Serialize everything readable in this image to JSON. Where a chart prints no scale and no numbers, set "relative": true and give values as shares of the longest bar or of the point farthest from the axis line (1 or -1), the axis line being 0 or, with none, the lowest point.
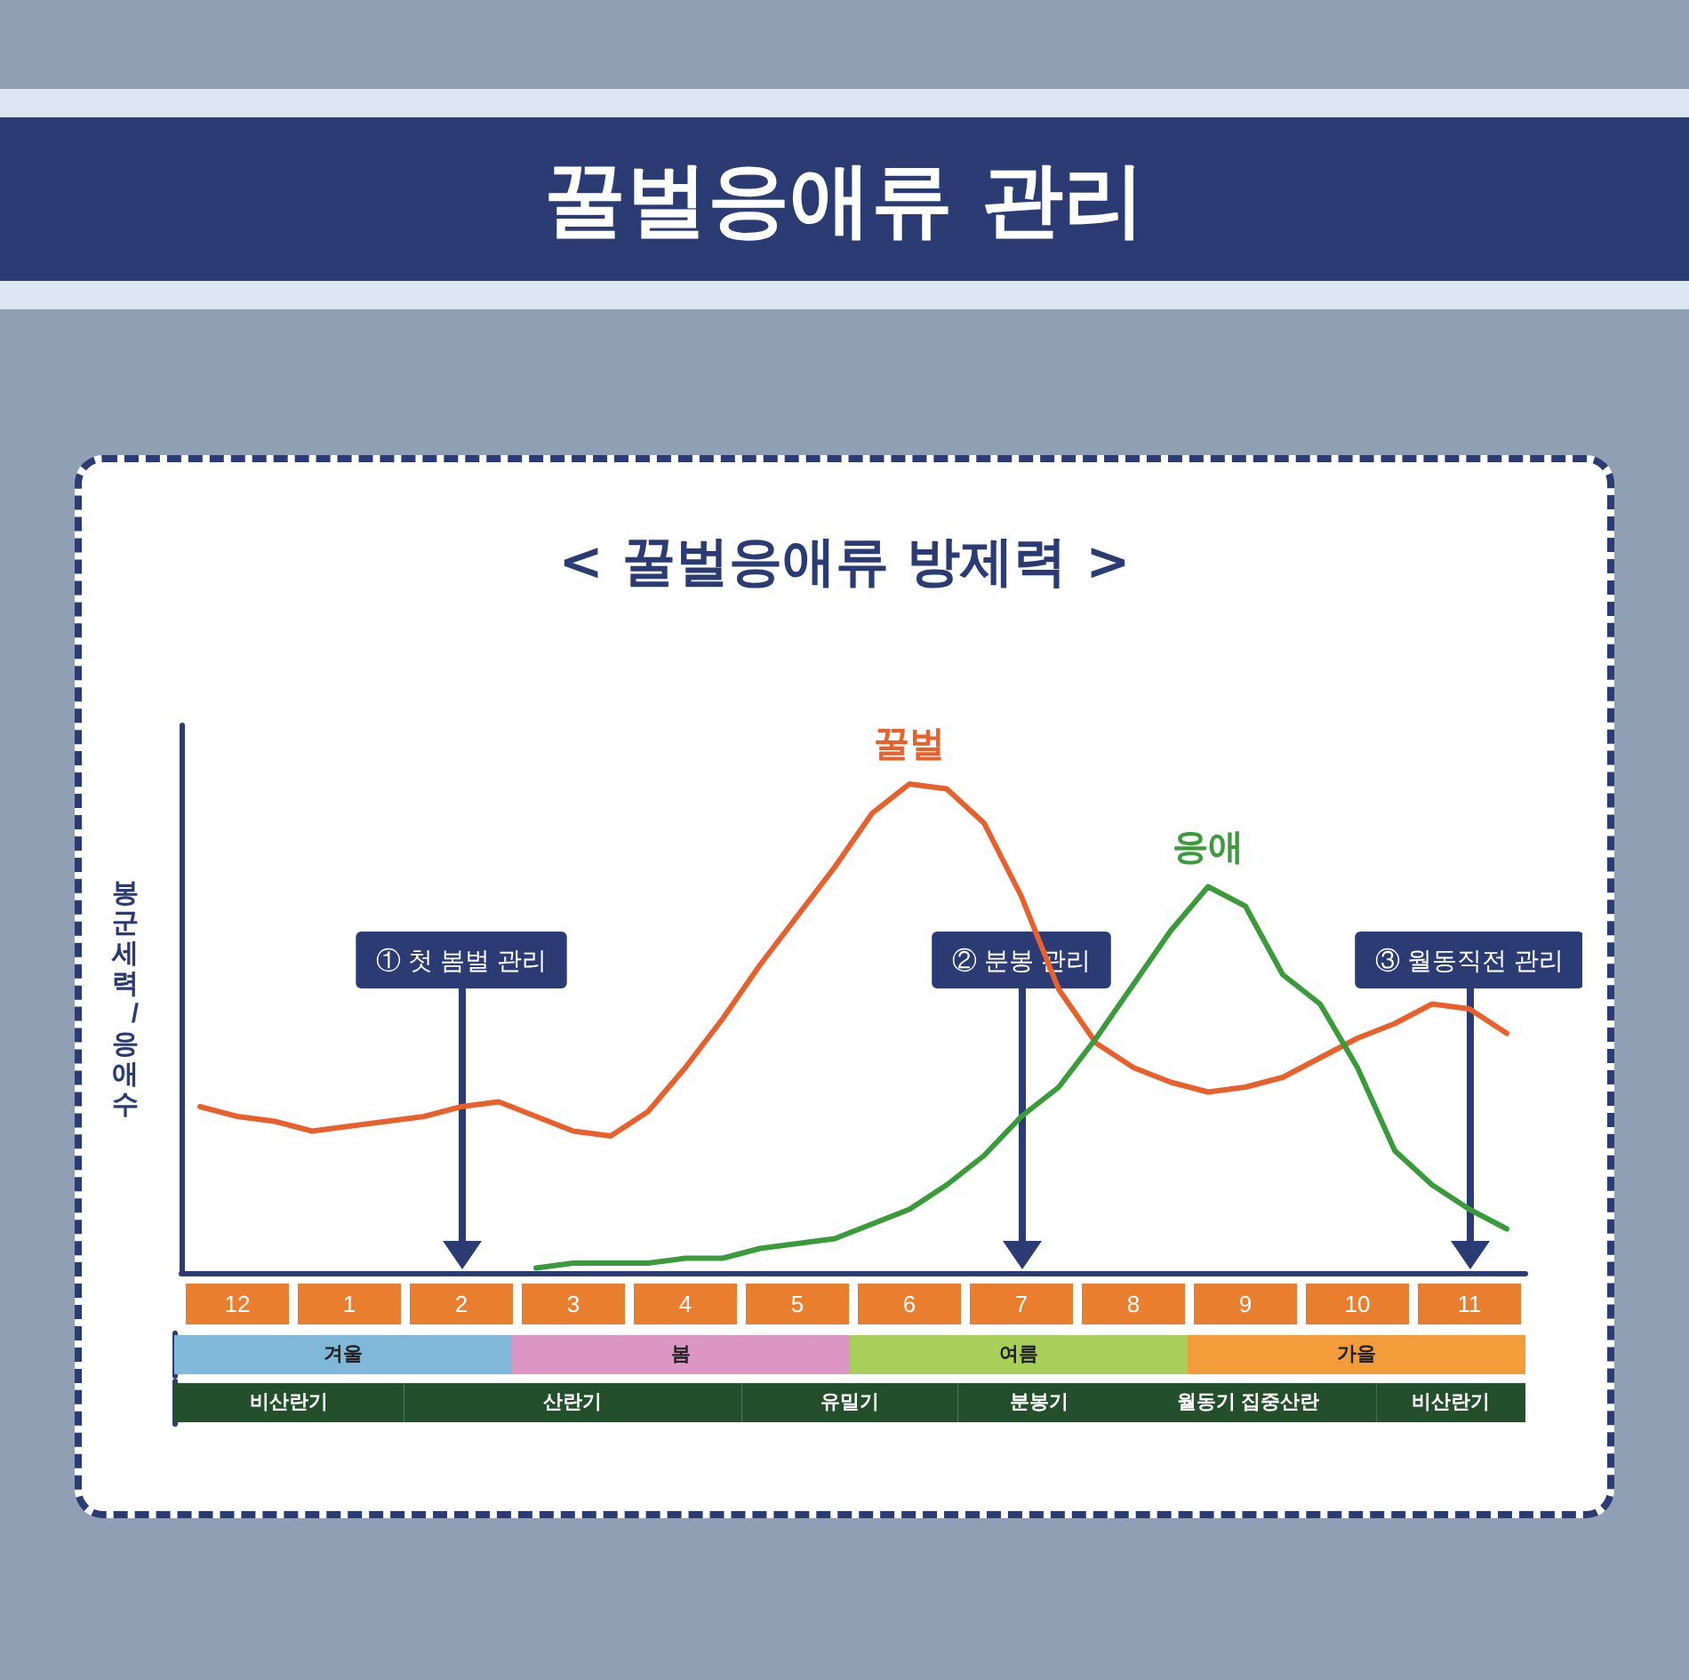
{
  "chart_data": [
    {
      "type": "line",
      "title": "꿀벌응애류 관리",
      "subtitle": "< 꿀벌응애류 방제력 >",
      "ylabel": "봉군세력/응애수",
      "relative": true,
      "categories": [
        null,
        "12",
        null,
        null,
        "1",
        null,
        null,
        "2",
        null,
        null,
        "3",
        null,
        null,
        "4",
        null,
        null,
        "5",
        null,
        null,
        "6",
        null,
        null,
        "7",
        null,
        null,
        "8",
        null,
        null,
        "9",
        null,
        null,
        "10",
        null,
        null,
        "11",
        null
      ],
      "series": [
        {
          "name": "꿀벌",
          "color": "#e8602c",
          "values": [
            0.34,
            0.32,
            0.31,
            0.29,
            0.3,
            0.31,
            0.32,
            0.34,
            0.35,
            0.32,
            0.29,
            0.28,
            0.33,
            0.42,
            0.52,
            0.63,
            0.73,
            0.83,
            0.94,
            1,
            0.99,
            0.92,
            0.77,
            0.58,
            0.47,
            0.42,
            0.39,
            0.37,
            0.38,
            0.4,
            0.44,
            0.48,
            0.51,
            0.55,
            0.54,
            0.49
          ]
        },
        {
          "name": "응애",
          "color": "#3a9b3a",
          "values": [
            null,
            null,
            null,
            null,
            null,
            null,
            null,
            null,
            null,
            0.01,
            0.02,
            0.02,
            0.02,
            0.03,
            0.03,
            0.05,
            0.06,
            0.07,
            0.1,
            0.13,
            0.18,
            0.24,
            0.32,
            0.38,
            0.48,
            0.59,
            0.7,
            0.79,
            0.75,
            0.61,
            0.55,
            0.42,
            0.25,
            0.18,
            0.13,
            0.09
          ]
        }
      ],
      "ref_lines": [
        {
          "axis": "x",
          "value": "2",
          "label": "① 첫 봄벌 관리",
          "color": "#2b3b74"
        },
        {
          "axis": "x",
          "value": "7",
          "label": "② 분봉 관리",
          "color": "#2b3b74"
        },
        {
          "axis": "x",
          "value": "11",
          "label": "③ 월동직전 관리",
          "color": "#2b3b74"
        }
      ]
    },
    {
      "type": "bar",
      "orientation": "horizontal",
      "stacked": true,
      "relative": true,
      "categories": [
        null
      ],
      "series": [
        {
          "name": "겨울",
          "color": "#7fb8d8",
          "values": [
            0.25
          ]
        },
        {
          "name": "봄",
          "color": "#dc96c6",
          "values": [
            0.25
          ]
        },
        {
          "name": "여름",
          "color": "#a8cf5a",
          "values": [
            0.25
          ]
        },
        {
          "name": "가을",
          "color": "#f39c3c",
          "values": [
            0.25
          ]
        }
      ]
    },
    {
      "type": "bar",
      "orientation": "horizontal",
      "stacked": true,
      "relative": true,
      "categories": [
        null
      ],
      "series": [
        {
          "name": "비산란기",
          "color": "#23502b",
          "values": [
            0.17
          ]
        },
        {
          "name": "산란기",
          "color": "#23502b",
          "values": [
            0.25
          ]
        },
        {
          "name": "유밀기",
          "color": "#23502b",
          "values": [
            0.16
          ]
        },
        {
          "name": "분봉기",
          "color": "#23502b",
          "values": [
            0.12
          ]
        },
        {
          "name": "월동기 집중산란",
          "color": "#23502b",
          "values": [
            0.19
          ]
        },
        {
          "name": "비산란기",
          "color": "#23502b",
          "values": [
            0.11
          ]
        }
      ]
    }
  ]
}
